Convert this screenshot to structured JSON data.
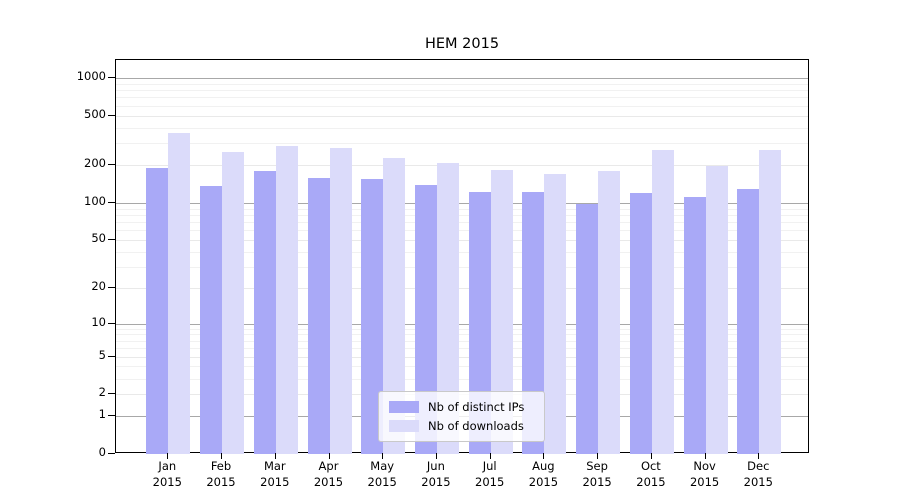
{
  "chart_data": {
    "type": "bar",
    "title": "HEM 2015",
    "categories": [
      "Jan",
      "Feb",
      "Mar",
      "Apr",
      "May",
      "Jun",
      "Jul",
      "Aug",
      "Sep",
      "Oct",
      "Nov",
      "Dec"
    ],
    "category_year": "2015",
    "series": [
      {
        "name": "Nb of distinct IPs",
        "color": "#a9a9f7",
        "values": [
          192,
          136,
          181,
          158,
          156,
          139,
          123,
          123,
          98,
          120,
          112,
          130
        ]
      },
      {
        "name": "Nb of downloads",
        "color": "#dbdbfa",
        "values": [
          362,
          255,
          285,
          277,
          228,
          208,
          184,
          172,
          180,
          265,
          197,
          265
        ]
      }
    ],
    "xlabel": "",
    "ylabel": "",
    "y_ticks": [
      0,
      1,
      2,
      5,
      10,
      20,
      50,
      100,
      200,
      500,
      1000
    ],
    "ylim": [
      0,
      1400
    ],
    "scale": "log(1+y)",
    "grid": true,
    "legend_position": "lower center"
  },
  "colors": {
    "bar_ips": "#a9a9f7",
    "bar_downloads": "#dbdbfa",
    "grid_major": "#a8a8a8",
    "grid_minor": "#e9e9e9",
    "spine": "#000000",
    "background": "#ffffff"
  }
}
